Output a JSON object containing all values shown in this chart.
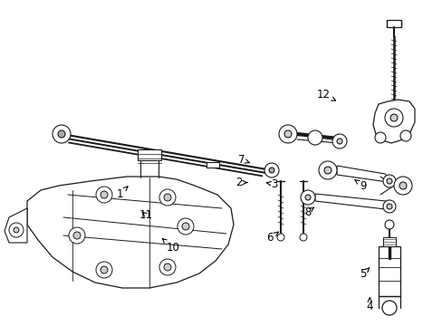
{
  "bg_color": "#ffffff",
  "line_color": "#1a1a1a",
  "fig_width": 4.89,
  "fig_height": 3.6,
  "dpi": 100,
  "label_arrows": {
    "1": {
      "lpos": [
        0.27,
        0.595
      ],
      "apos": [
        0.29,
        0.57
      ]
    },
    "2": {
      "lpos": [
        0.54,
        0.56
      ],
      "apos": [
        0.565,
        0.56
      ]
    },
    "3": {
      "lpos": [
        0.62,
        0.565
      ],
      "apos": [
        0.6,
        0.56
      ]
    },
    "4": {
      "lpos": [
        0.835,
        0.94
      ],
      "apos": [
        0.835,
        0.91
      ]
    },
    "5": {
      "lpos": [
        0.82,
        0.84
      ],
      "apos": [
        0.835,
        0.82
      ]
    },
    "6": {
      "lpos": [
        0.61,
        0.73
      ],
      "apos": [
        0.63,
        0.71
      ]
    },
    "7": {
      "lpos": [
        0.545,
        0.49
      ],
      "apos": [
        0.565,
        0.5
      ]
    },
    "8": {
      "lpos": [
        0.695,
        0.65
      ],
      "apos": [
        0.71,
        0.635
      ]
    },
    "9": {
      "lpos": [
        0.82,
        0.57
      ],
      "apos": [
        0.8,
        0.55
      ]
    },
    "10": {
      "lpos": [
        0.39,
        0.76
      ],
      "apos": [
        0.365,
        0.73
      ]
    },
    "11": {
      "lpos": [
        0.33,
        0.66
      ],
      "apos": [
        0.315,
        0.645
      ]
    },
    "12": {
      "lpos": [
        0.73,
        0.29
      ],
      "apos": [
        0.76,
        0.31
      ]
    }
  }
}
